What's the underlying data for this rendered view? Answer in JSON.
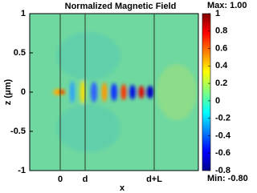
{
  "chart_data": {
    "type": "heatmap",
    "title": "Normalized Magnetic Field",
    "x_label": "x",
    "y_label": "z (μm)",
    "xticks": [
      "0",
      "d",
      "d+L"
    ],
    "ylim": [
      -1,
      1
    ],
    "yticks": [
      -1,
      -0.5,
      0,
      0.5,
      1
    ],
    "clim": [
      -0.8,
      1
    ],
    "cticks": [
      1,
      0.8,
      0.6,
      0.4,
      0.2,
      0,
      -0.2,
      -0.4,
      -0.6,
      -0.8
    ],
    "max_label": "Max: 1.00",
    "min_label": "Min: -0.80"
  }
}
